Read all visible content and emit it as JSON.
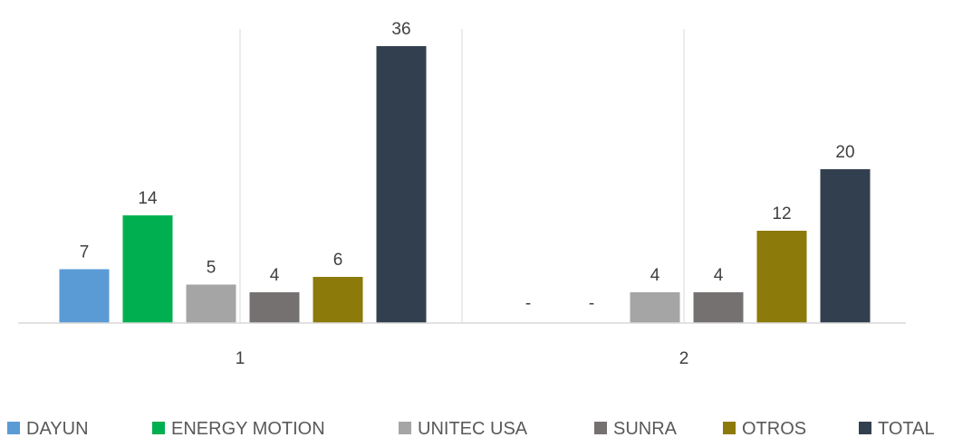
{
  "chart_data": {
    "type": "bar",
    "categories": [
      "1",
      "2"
    ],
    "series": [
      {
        "name": "DAYUN",
        "color": "#5b9bd5",
        "values": [
          7,
          0
        ],
        "labels": [
          "7",
          "-"
        ]
      },
      {
        "name": "ENERGY MOTION",
        "color": "#00b050",
        "values": [
          14,
          0
        ],
        "labels": [
          "14",
          "-"
        ]
      },
      {
        "name": "UNITEC USA",
        "color": "#a5a5a5",
        "values": [
          5,
          4
        ],
        "labels": [
          "5",
          "4"
        ]
      },
      {
        "name": "SUNRA",
        "color": "#767171",
        "values": [
          4,
          4
        ],
        "labels": [
          "4",
          "4"
        ]
      },
      {
        "name": "OTROS",
        "color": "#8c7a0b",
        "values": [
          6,
          12
        ],
        "labels": [
          "6",
          "12"
        ]
      },
      {
        "name": "TOTAL",
        "color": "#323f4f",
        "values": [
          36,
          20
        ],
        "labels": [
          "36",
          "20"
        ]
      }
    ],
    "ylim": [
      0,
      36
    ],
    "grid": true,
    "legend_position": "bottom"
  }
}
